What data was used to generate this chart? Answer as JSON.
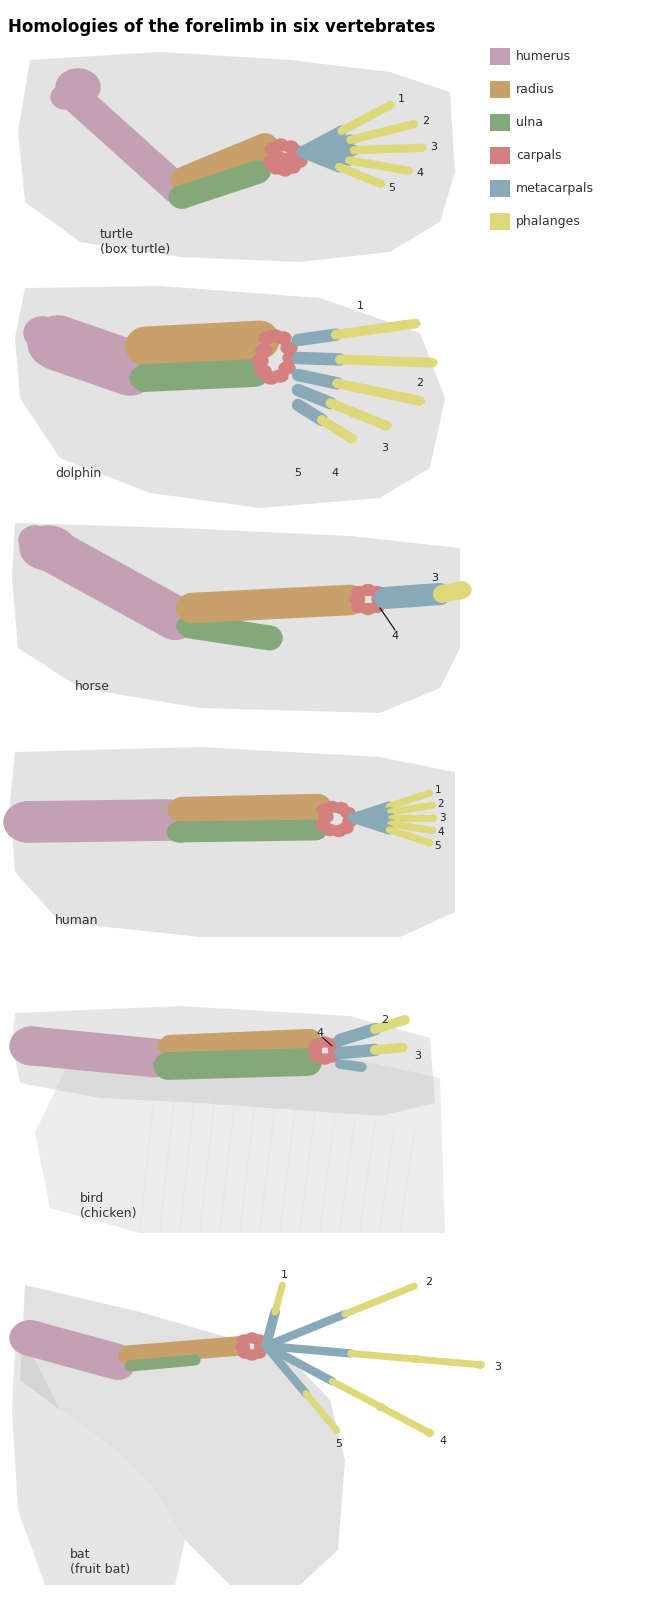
{
  "title": "Homologies of the forelimb in six vertebrates",
  "title_fontsize": 12,
  "title_fontweight": "bold",
  "background_color": "#ffffff",
  "legend_items": [
    {
      "label": "humerus",
      "color": "#c4a0b5"
    },
    {
      "label": "radius",
      "color": "#c8a06a"
    },
    {
      "label": "ulna",
      "color": "#85a87a"
    },
    {
      "label": "carpals",
      "color": "#d48080"
    },
    {
      "label": "metacarpals",
      "color": "#88aab8"
    },
    {
      "label": "phalanges",
      "color": "#ddd87a"
    }
  ],
  "colors": {
    "humerus": "#c4a0b5",
    "radius": "#c8a06a",
    "ulna": "#85a87a",
    "carpals": "#d48080",
    "metacarpals": "#88aab8",
    "phalanges": "#ddd87a",
    "bg_shadow": "#c8c8c8"
  }
}
